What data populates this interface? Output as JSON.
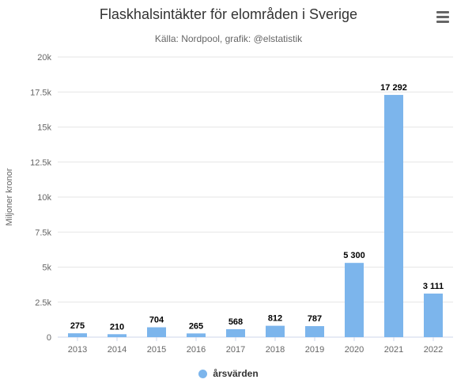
{
  "header": {
    "title": "Flaskhalsintäkter för elområden i Sverige",
    "subtitle": "Källa: Nordpool, grafik: @elstatistik"
  },
  "menu": {
    "icon": "hamburger-menu-icon"
  },
  "legend": {
    "label": "årsvärden",
    "color": "#7cb5ec"
  },
  "chart_data": {
    "type": "bar",
    "title": "Flaskhalsintäkter för elområden i Sverige",
    "subtitle": "Källa: Nordpool, grafik: @elstatistik",
    "xlabel": "",
    "ylabel": "Miljoner kronor",
    "categories": [
      "2013",
      "2014",
      "2015",
      "2016",
      "2017",
      "2018",
      "2019",
      "2020",
      "2021",
      "2022"
    ],
    "series": [
      {
        "name": "årsvärden",
        "color": "#7cb5ec",
        "values": [
          275,
          210,
          704,
          265,
          568,
          812,
          787,
          5300,
          17292,
          3111
        ],
        "data_labels": [
          "275",
          "210",
          "704",
          "265",
          "568",
          "812",
          "787",
          "5 300",
          "17 292",
          "3 111"
        ]
      }
    ],
    "ylim": [
      0,
      20000
    ],
    "yticks": [
      0,
      2500,
      5000,
      7500,
      10000,
      12500,
      15000,
      17500,
      20000
    ],
    "ytick_labels": [
      "0",
      "2.5k",
      "5k",
      "7.5k",
      "10k",
      "12.5k",
      "15k",
      "17.5k",
      "20k"
    ],
    "grid": true,
    "legend_position": "bottom-center"
  }
}
